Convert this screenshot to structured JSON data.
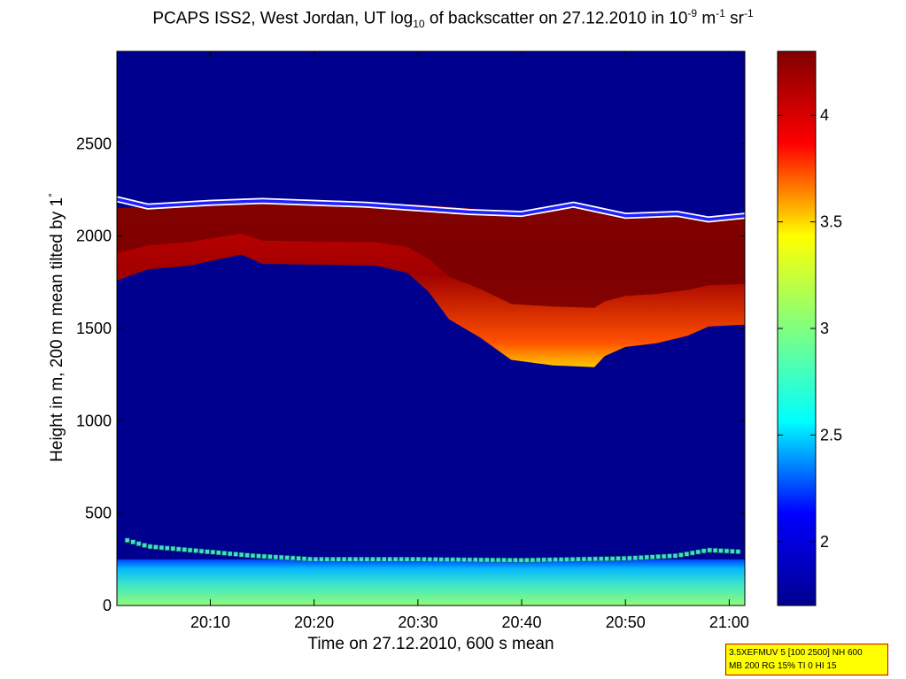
{
  "title": {
    "pre": "PCAPS ISS2, West Jordan, UT log",
    "sub": "10",
    "mid": " of backscatter on 27.12.2010 in 10",
    "sup1": "-9",
    "unit1": " m",
    "sup2": "-1",
    "unit2": " sr",
    "sup3": "-1"
  },
  "ylabel": {
    "text": "Height in m, 200 m mean tilted by 1",
    "deg": "°"
  },
  "info_box": {
    "line1": "3.5XEFMUV 5 [100 2500] NH 600",
    "line2": "MB 200 RG 15% TI 0 HI 15"
  },
  "colors": {
    "plot_background": "#00008f",
    "colormap": [
      "#00008f",
      "#0000ff",
      "#00ffff",
      "#80ff80",
      "#ffff00",
      "#ff0000",
      "#800000"
    ]
  },
  "chart_data": {
    "type": "heatmap",
    "title": "PCAPS ISS2, West Jordan, UT log10 of backscatter on 27.12.2010 in 10^-9 m^-1 sr^-1",
    "xlabel": "Time on 27.12.2010, 600 s mean",
    "ylabel": "Height in m, 200 m mean tilted by 1°",
    "x_unit": "minutes after 20:00 UT",
    "xlim": [
      1.0,
      61.5
    ],
    "ylim": [
      0,
      3000
    ],
    "x_ticks": [
      {
        "value": 10,
        "label": "20:10"
      },
      {
        "value": 20,
        "label": "20:20"
      },
      {
        "value": 30,
        "label": "20:30"
      },
      {
        "value": 40,
        "label": "20:40"
      },
      {
        "value": 50,
        "label": "20:50"
      },
      {
        "value": 60,
        "label": "21:00"
      }
    ],
    "y_ticks": [
      0,
      500,
      1000,
      1500,
      2000,
      2500
    ],
    "colorbar": {
      "range": [
        1.7,
        4.3
      ],
      "ticks": [
        {
          "value": 2,
          "label": "2"
        },
        {
          "value": 2.5,
          "label": "2.5"
        },
        {
          "value": 3,
          "label": "3"
        },
        {
          "value": 3.5,
          "label": "3.5"
        },
        {
          "value": 4,
          "label": "4"
        }
      ]
    },
    "surface_layer": {
      "height_m": 250,
      "value_bottom": 2.75,
      "value_top": 2.3
    },
    "elevated_layer_top_m": {
      "t": [
        1,
        4,
        13,
        15,
        30,
        35,
        40,
        45,
        48,
        55,
        58,
        61.5
      ],
      "h": [
        2150,
        2160,
        2200,
        2180,
        2170,
        2150,
        2120,
        2150,
        2130,
        2120,
        2100,
        2100
      ]
    },
    "elevated_layer_bottom_m": {
      "t": [
        1,
        4,
        8,
        13,
        15,
        26,
        29,
        31,
        33,
        36,
        39,
        43,
        47,
        48,
        50,
        53,
        56,
        58,
        61.5
      ],
      "h": [
        1760,
        1820,
        1840,
        1900,
        1850,
        1840,
        1800,
        1700,
        1550,
        1450,
        1330,
        1300,
        1290,
        1350,
        1400,
        1420,
        1460,
        1510,
        1520
      ]
    },
    "boundary_layer_height_m": {
      "t": [
        1,
        4,
        10,
        15,
        20,
        25,
        30,
        35,
        40,
        45,
        50,
        55,
        58,
        61.5
      ],
      "h": [
        2200,
        2160,
        2180,
        2190,
        2180,
        2170,
        2150,
        2130,
        2120,
        2170,
        2110,
        2120,
        2090,
        2110
      ]
    },
    "surface_mixing_height_m": {
      "t": [
        1,
        4,
        6,
        14,
        20,
        30,
        40,
        50,
        55,
        58,
        61.5
      ],
      "h": [
        370,
        320,
        310,
        270,
        250,
        250,
        245,
        255,
        270,
        300,
        290
      ]
    }
  }
}
